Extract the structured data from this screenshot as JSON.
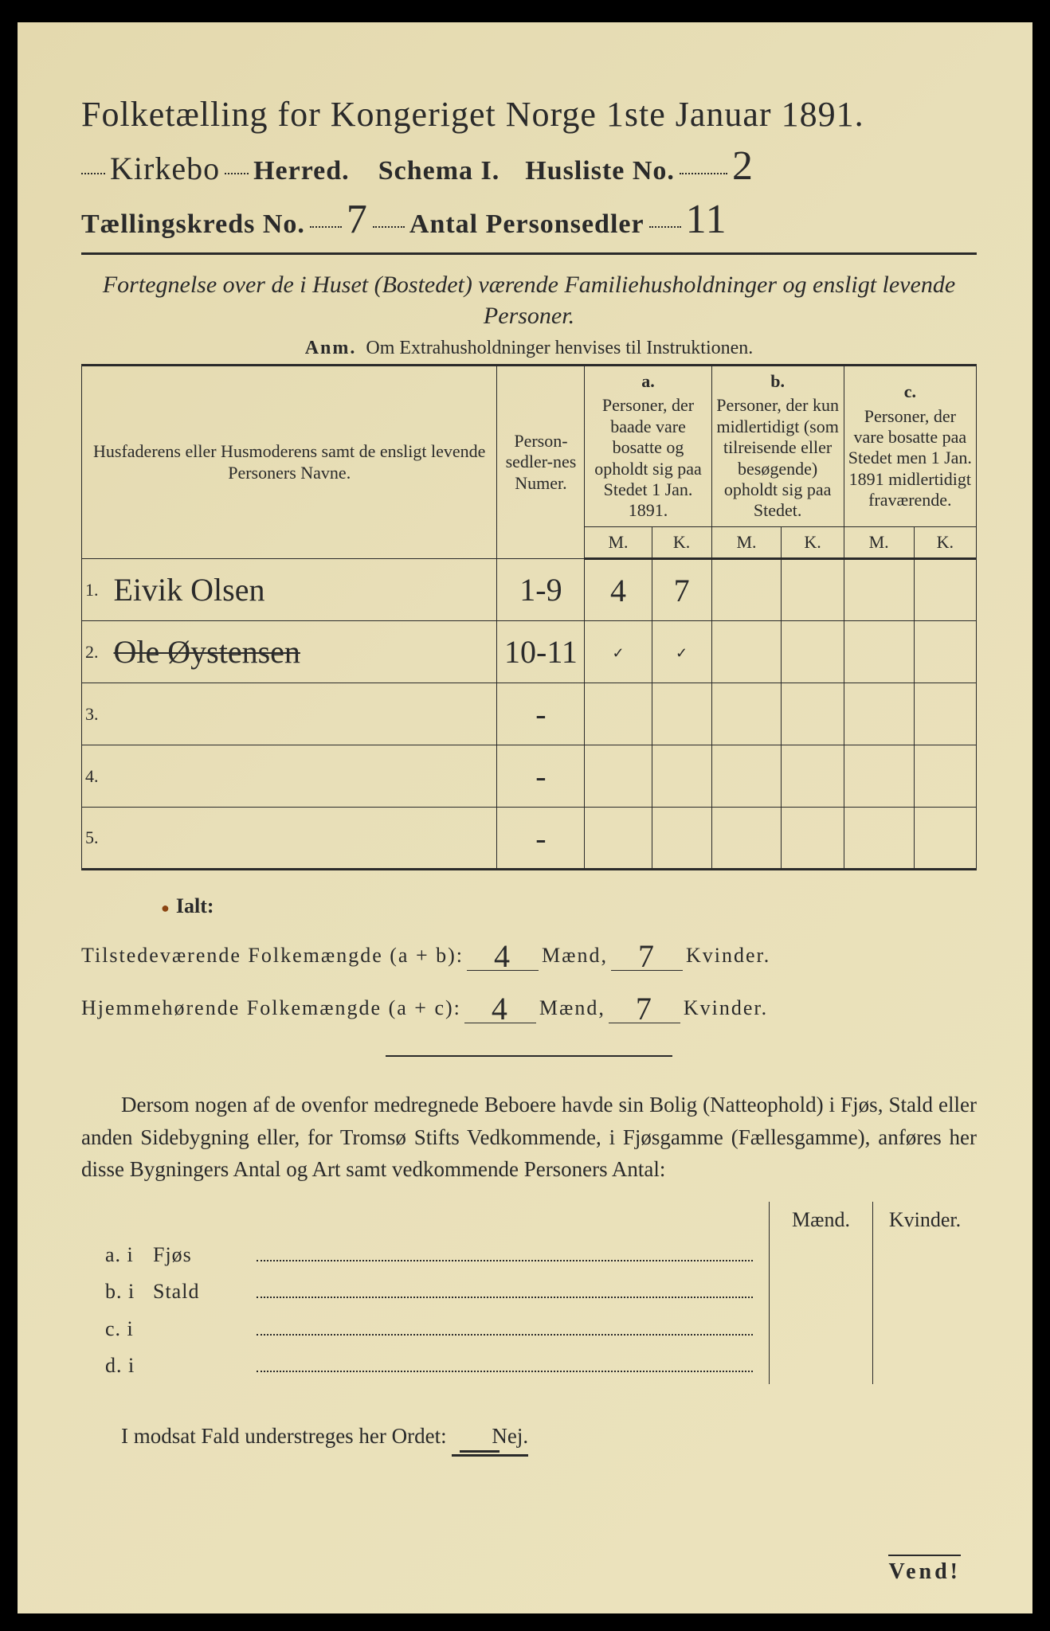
{
  "colors": {
    "paper": "#e8dfb8",
    "ink": "#2a2a2a",
    "frame": "#000000",
    "bullet": "#8b4513"
  },
  "typography": {
    "title_fontsize_pt": 33,
    "header_fontsize_pt": 26,
    "body_fontsize_pt": 20,
    "table_fontsize_pt": 17,
    "handwriting_family": "cursive"
  },
  "title": "Folketælling for Kongeriget Norge 1ste Januar 1891.",
  "header": {
    "herred_label": "Herred.",
    "herred_value": "Kirkebo",
    "schema_label": "Schema I.",
    "husliste_label": "Husliste No.",
    "husliste_value": "2",
    "kreds_label": "Tællingskreds No.",
    "kreds_value": "7",
    "antal_label": "Antal Personsedler",
    "antal_value": "11"
  },
  "subtitle": "Fortegnelse over de i Huset (Bostedet) værende Familiehusholdninger og ensligt levende Personer.",
  "anm": {
    "prefix": "Anm.",
    "text": "Om Extrahusholdninger henvises til Instruktionen."
  },
  "table": {
    "col_names_heading": "Husfaderens eller Husmoderens samt de ensligt levende Personers Navne.",
    "col_numer": "Person-sedler-nes Numer.",
    "col_a_letter": "a.",
    "col_a": "Personer, der baade vare bosatte og opholdt sig paa Stedet 1 Jan. 1891.",
    "col_b_letter": "b.",
    "col_b": "Personer, der kun midlertidigt (som tilreisende eller besøgende) opholdt sig paa Stedet.",
    "col_c_letter": "c.",
    "col_c": "Personer, der vare bosatte paa Stedet men 1 Jan. 1891 midlertidigt fraværende.",
    "mk_m": "M.",
    "mk_k": "K.",
    "rows": [
      {
        "num": "1.",
        "name": "Eivik Olsen",
        "numer": "1-9",
        "a_m": "4",
        "a_k": "7",
        "b_m": "",
        "b_k": "",
        "c_m": "",
        "c_k": "",
        "struck": false
      },
      {
        "num": "2.",
        "name": "Ole Øystensen",
        "numer": "10-11",
        "a_m": "✓",
        "a_k": "✓",
        "b_m": "",
        "b_k": "",
        "c_m": "",
        "c_k": "",
        "struck": true
      },
      {
        "num": "3.",
        "name": "",
        "numer": "-",
        "a_m": "",
        "a_k": "",
        "b_m": "",
        "b_k": "",
        "c_m": "",
        "c_k": "",
        "struck": false
      },
      {
        "num": "4.",
        "name": "",
        "numer": "-",
        "a_m": "",
        "a_k": "",
        "b_m": "",
        "b_k": "",
        "c_m": "",
        "c_k": "",
        "struck": false
      },
      {
        "num": "5.",
        "name": "",
        "numer": "-",
        "a_m": "",
        "a_k": "",
        "b_m": "",
        "b_k": "",
        "c_m": "",
        "c_k": "",
        "struck": false
      }
    ]
  },
  "ialt": {
    "label": "Ialt:",
    "line1_label": "Tilstedeværende Folkemængde (a + b):",
    "line2_label": "Hjemmehørende Folkemængde (a + c):",
    "maend": "Mænd,",
    "kvinder": "Kvinder.",
    "line1_m": "4",
    "line1_k": "7",
    "line2_m": "4",
    "line2_k": "7"
  },
  "para": "Dersom nogen af de ovenfor medregnede Beboere havde sin Bolig (Natteophold) i Fjøs, Stald eller anden Sidebygning eller, for Tromsø Stifts Vedkommende, i Fjøsgamme (Fællesgamme), anføres her disse Bygningers Antal og Art samt vedkommende Personers Antal:",
  "sec_table": {
    "head_m": "Mænd.",
    "head_k": "Kvinder.",
    "rows": [
      {
        "lbl": "a.  i",
        "txt": "Fjøs"
      },
      {
        "lbl": "b.  i",
        "txt": "Stald"
      },
      {
        "lbl": "c.  i",
        "txt": ""
      },
      {
        "lbl": "d.  i",
        "txt": ""
      }
    ]
  },
  "final": {
    "text": "I modsat Fald understreges her Ordet:",
    "nej": "Nej."
  },
  "vend": "Vend!"
}
